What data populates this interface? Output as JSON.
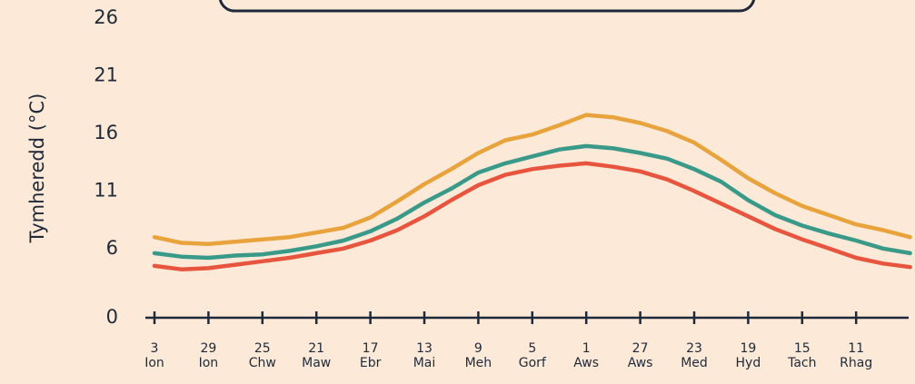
{
  "chart_data": {
    "type": "line",
    "y_label": "Tymheredd (°C)",
    "categories": [
      "3 Ion",
      null,
      "29 Ion",
      null,
      "25 Chw",
      null,
      "21 Maw",
      null,
      "17 Ebr",
      null,
      "13 Mai",
      null,
      "9 Meh",
      null,
      "5 Gorf",
      null,
      "1 Aws",
      null,
      "27 Aws",
      null,
      "23 Med",
      null,
      "19 Hyd",
      null,
      "15 Tach",
      null,
      "11 Rhag",
      null,
      null
    ],
    "series": [
      {
        "color": "#e8a33c",
        "values": [
          7.0,
          6.5,
          6.4,
          6.6,
          6.8,
          7.0,
          7.4,
          7.8,
          8.7,
          10.1,
          11.6,
          12.9,
          14.3,
          15.4,
          15.9,
          16.7,
          17.6,
          17.4,
          16.9,
          16.2,
          15.2,
          13.7,
          12.1,
          10.8,
          9.7,
          8.9,
          8.1,
          7.6,
          7.0
        ]
      },
      {
        "color": "#3a9a8a",
        "values": [
          5.6,
          5.3,
          5.2,
          5.4,
          5.5,
          5.8,
          6.2,
          6.7,
          7.5,
          8.6,
          10.0,
          11.2,
          12.6,
          13.4,
          14.0,
          14.6,
          14.9,
          14.7,
          14.3,
          13.8,
          12.9,
          11.8,
          10.2,
          8.9,
          8.0,
          7.3,
          6.7,
          6.0,
          5.6
        ]
      },
      {
        "color": "#e8553f",
        "values": [
          4.5,
          4.2,
          4.3,
          4.6,
          4.9,
          5.2,
          5.6,
          6.0,
          6.7,
          7.6,
          8.8,
          10.2,
          11.5,
          12.4,
          12.9,
          13.2,
          13.4,
          13.1,
          12.7,
          12.0,
          11.0,
          9.9,
          8.8,
          7.7,
          6.8,
          6.0,
          5.2,
          4.7,
          4.4
        ]
      }
    ],
    "ylim": [
      0,
      26
    ],
    "yticks": [
      0,
      6,
      11,
      16,
      21,
      26
    ],
    "grid": false
  }
}
